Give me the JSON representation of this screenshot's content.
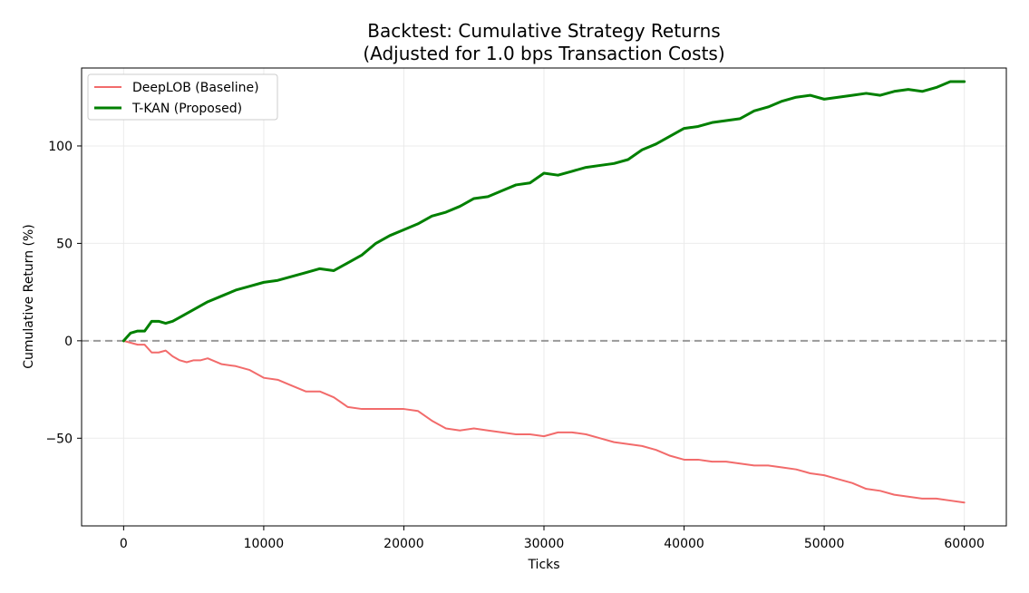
{
  "chart_data": {
    "type": "line",
    "title": "Backtest: Cumulative Strategy Returns\n(Adjusted for 1.0 bps Transaction Costs)",
    "xlabel": "Ticks",
    "ylabel": "Cumulative Return (%)",
    "xlim": [
      -3000,
      63000
    ],
    "ylim": [
      -95,
      140
    ],
    "xticks": [
      0,
      10000,
      20000,
      30000,
      40000,
      50000,
      60000
    ],
    "yticks": [
      -50,
      0,
      50,
      100
    ],
    "ytick_labels": [
      "−50",
      "0",
      "50",
      "100"
    ],
    "grid": true,
    "legend_position": "top-left",
    "reference_line": {
      "y": 0,
      "style": "dashed",
      "color": "#999999"
    },
    "series": [
      {
        "name": "DeepLOB (Baseline)",
        "color": "#f26b6b",
        "points": [
          [
            0,
            0
          ],
          [
            500,
            -1
          ],
          [
            1000,
            -2
          ],
          [
            1500,
            -2
          ],
          [
            2000,
            -6
          ],
          [
            2500,
            -6
          ],
          [
            3000,
            -5
          ],
          [
            3500,
            -8
          ],
          [
            4000,
            -10
          ],
          [
            4500,
            -11
          ],
          [
            5000,
            -10
          ],
          [
            5500,
            -10
          ],
          [
            6000,
            -9
          ],
          [
            7000,
            -12
          ],
          [
            8000,
            -13
          ],
          [
            9000,
            -15
          ],
          [
            10000,
            -19
          ],
          [
            11000,
            -20
          ],
          [
            12000,
            -23
          ],
          [
            13000,
            -26
          ],
          [
            14000,
            -26
          ],
          [
            15000,
            -29
          ],
          [
            16000,
            -34
          ],
          [
            17000,
            -35
          ],
          [
            18000,
            -35
          ],
          [
            19000,
            -35
          ],
          [
            20000,
            -35
          ],
          [
            21000,
            -36
          ],
          [
            22000,
            -41
          ],
          [
            23000,
            -45
          ],
          [
            24000,
            -46
          ],
          [
            25000,
            -45
          ],
          [
            26000,
            -46
          ],
          [
            27000,
            -47
          ],
          [
            28000,
            -48
          ],
          [
            29000,
            -48
          ],
          [
            30000,
            -49
          ],
          [
            31000,
            -47
          ],
          [
            32000,
            -47
          ],
          [
            33000,
            -48
          ],
          [
            34000,
            -50
          ],
          [
            35000,
            -52
          ],
          [
            36000,
            -53
          ],
          [
            37000,
            -54
          ],
          [
            38000,
            -56
          ],
          [
            39000,
            -59
          ],
          [
            40000,
            -61
          ],
          [
            41000,
            -61
          ],
          [
            42000,
            -62
          ],
          [
            43000,
            -62
          ],
          [
            44000,
            -63
          ],
          [
            45000,
            -64
          ],
          [
            46000,
            -64
          ],
          [
            47000,
            -65
          ],
          [
            48000,
            -66
          ],
          [
            49000,
            -68
          ],
          [
            50000,
            -69
          ],
          [
            51000,
            -71
          ],
          [
            52000,
            -73
          ],
          [
            53000,
            -76
          ],
          [
            54000,
            -77
          ],
          [
            55000,
            -79
          ],
          [
            56000,
            -80
          ],
          [
            57000,
            -81
          ],
          [
            58000,
            -81
          ],
          [
            59000,
            -82
          ],
          [
            60000,
            -83
          ]
        ]
      },
      {
        "name": "T-KAN (Proposed)",
        "color": "#008000",
        "points": [
          [
            0,
            0
          ],
          [
            500,
            4
          ],
          [
            1000,
            5
          ],
          [
            1500,
            5
          ],
          [
            2000,
            10
          ],
          [
            2500,
            10
          ],
          [
            3000,
            9
          ],
          [
            3500,
            10
          ],
          [
            4000,
            12
          ],
          [
            5000,
            16
          ],
          [
            6000,
            20
          ],
          [
            7000,
            23
          ],
          [
            8000,
            26
          ],
          [
            9000,
            28
          ],
          [
            10000,
            30
          ],
          [
            11000,
            31
          ],
          [
            12000,
            33
          ],
          [
            13000,
            35
          ],
          [
            14000,
            37
          ],
          [
            15000,
            36
          ],
          [
            16000,
            40
          ],
          [
            17000,
            44
          ],
          [
            18000,
            50
          ],
          [
            19000,
            54
          ],
          [
            20000,
            57
          ],
          [
            21000,
            60
          ],
          [
            22000,
            64
          ],
          [
            23000,
            66
          ],
          [
            24000,
            69
          ],
          [
            25000,
            73
          ],
          [
            26000,
            74
          ],
          [
            27000,
            77
          ],
          [
            28000,
            80
          ],
          [
            29000,
            81
          ],
          [
            30000,
            86
          ],
          [
            31000,
            85
          ],
          [
            32000,
            87
          ],
          [
            33000,
            89
          ],
          [
            34000,
            90
          ],
          [
            35000,
            91
          ],
          [
            36000,
            93
          ],
          [
            37000,
            98
          ],
          [
            38000,
            101
          ],
          [
            39000,
            105
          ],
          [
            40000,
            109
          ],
          [
            41000,
            110
          ],
          [
            42000,
            112
          ],
          [
            43000,
            113
          ],
          [
            44000,
            114
          ],
          [
            45000,
            118
          ],
          [
            46000,
            120
          ],
          [
            47000,
            123
          ],
          [
            48000,
            125
          ],
          [
            49000,
            126
          ],
          [
            50000,
            124
          ],
          [
            51000,
            125
          ],
          [
            52000,
            126
          ],
          [
            53000,
            127
          ],
          [
            54000,
            126
          ],
          [
            55000,
            128
          ],
          [
            56000,
            129
          ],
          [
            57000,
            128
          ],
          [
            58000,
            130
          ],
          [
            59000,
            133
          ],
          [
            60000,
            133
          ]
        ]
      }
    ]
  }
}
